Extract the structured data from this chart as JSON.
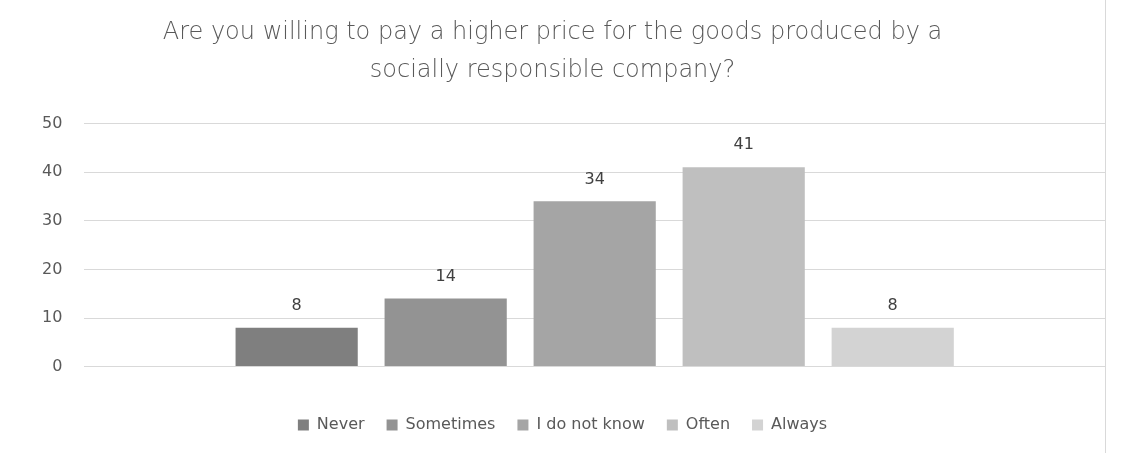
{
  "chart_data": {
    "type": "bar",
    "title": "Are you willing to pay a higher price for the goods produced by a socially responsible company?",
    "categories": [
      null
    ],
    "series": [
      {
        "name": "Never",
        "color": "#7f7f7f",
        "values": [
          8
        ]
      },
      {
        "name": "Sometimes",
        "color": "#939393",
        "values": [
          14
        ]
      },
      {
        "name": "I do not know",
        "color": "#a5a5a5",
        "values": [
          34
        ]
      },
      {
        "name": "Often",
        "color": "#bfbfbf",
        "values": [
          41
        ]
      },
      {
        "name": "Always",
        "color": "#d3d3d3",
        "values": [
          8
        ]
      }
    ],
    "ylim": [
      0,
      50
    ],
    "yticks": [
      0,
      10,
      20,
      30,
      40,
      50
    ],
    "grid": "y",
    "legend": "bottom",
    "data_labels": true
  }
}
